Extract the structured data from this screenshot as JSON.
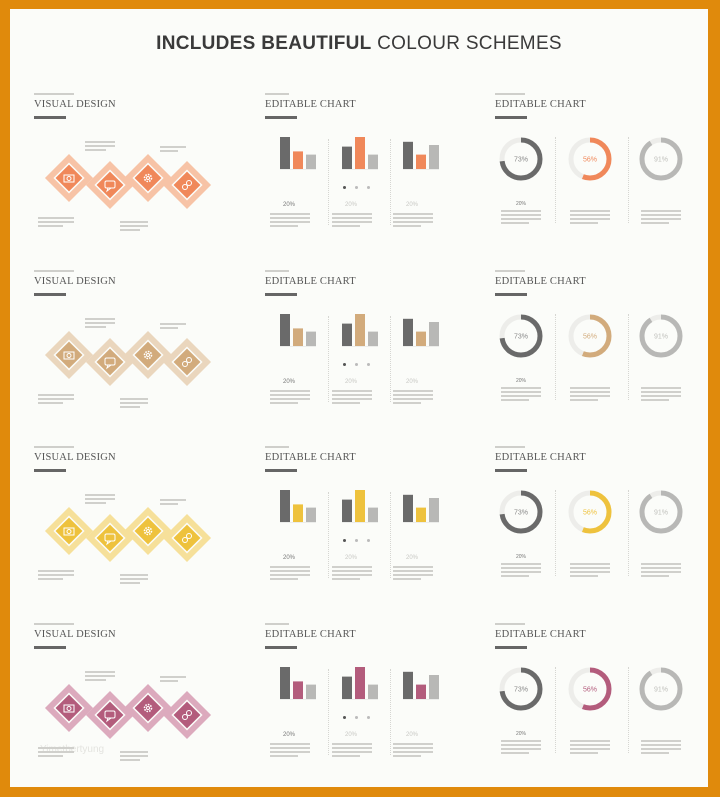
{
  "header": {
    "title_bold": "INCLUDES BEAUTIFUL",
    "title_light": "COLOUR SCHEMES"
  },
  "rows": [
    {
      "color": "#f0885a",
      "light": "#f7c3a6",
      "slides": [
        {
          "title": "VISUAL DESIGN"
        },
        {
          "title": "EDITABLE CHART",
          "pcts": [
            "20%",
            "20%",
            "20%"
          ]
        },
        {
          "title": "EDITABLE CHART",
          "donuts": [
            {
              "label": "73%",
              "value": 0.73
            },
            {
              "label": "56%",
              "value": 0.56
            },
            {
              "label": "91%",
              "value": 0.91
            }
          ],
          "pcts": [
            "20%"
          ]
        }
      ]
    },
    {
      "color": "#d2ab7c",
      "light": "#ead6bd",
      "slides": [
        {
          "title": "VISUAL DESIGN"
        },
        {
          "title": "EDITABLE CHART",
          "pcts": [
            "20%",
            "20%",
            "20%"
          ]
        },
        {
          "title": "EDITABLE CHART",
          "donuts": [
            {
              "label": "73%",
              "value": 0.73
            },
            {
              "label": "56%",
              "value": 0.56
            },
            {
              "label": "91%",
              "value": 0.91
            }
          ],
          "pcts": [
            "20%"
          ]
        }
      ]
    },
    {
      "color": "#eec23d",
      "light": "#f6e09a",
      "slides": [
        {
          "title": "VISUAL DESIGN"
        },
        {
          "title": "EDITABLE CHART",
          "pcts": [
            "20%",
            "20%",
            "20%"
          ]
        },
        {
          "title": "EDITABLE CHART",
          "donuts": [
            {
              "label": "73%",
              "value": 0.73
            },
            {
              "label": "56%",
              "value": 0.56
            },
            {
              "label": "91%",
              "value": 0.91
            }
          ],
          "pcts": [
            "20%"
          ]
        }
      ]
    },
    {
      "color": "#b35c7c",
      "light": "#dcaabd",
      "slides": [
        {
          "title": "VISUAL DESIGN"
        },
        {
          "title": "EDITABLE CHART",
          "pcts": [
            "20%",
            "20%",
            "20%"
          ]
        },
        {
          "title": "EDITABLE CHART",
          "donuts": [
            {
              "label": "73%",
              "value": 0.73
            },
            {
              "label": "56%",
              "value": 0.56
            },
            {
              "label": "91%",
              "value": 0.91
            }
          ],
          "pcts": [
            "20%"
          ]
        }
      ]
    }
  ],
  "colors": {
    "frame": "#e08a0c",
    "dark": "#6a6a6a",
    "grey": "#b8b8b6"
  },
  "icons": [
    "camera-icon",
    "message-icon",
    "gear-icon",
    "link-icon"
  ],
  "watermark": "Yimetbertyung"
}
